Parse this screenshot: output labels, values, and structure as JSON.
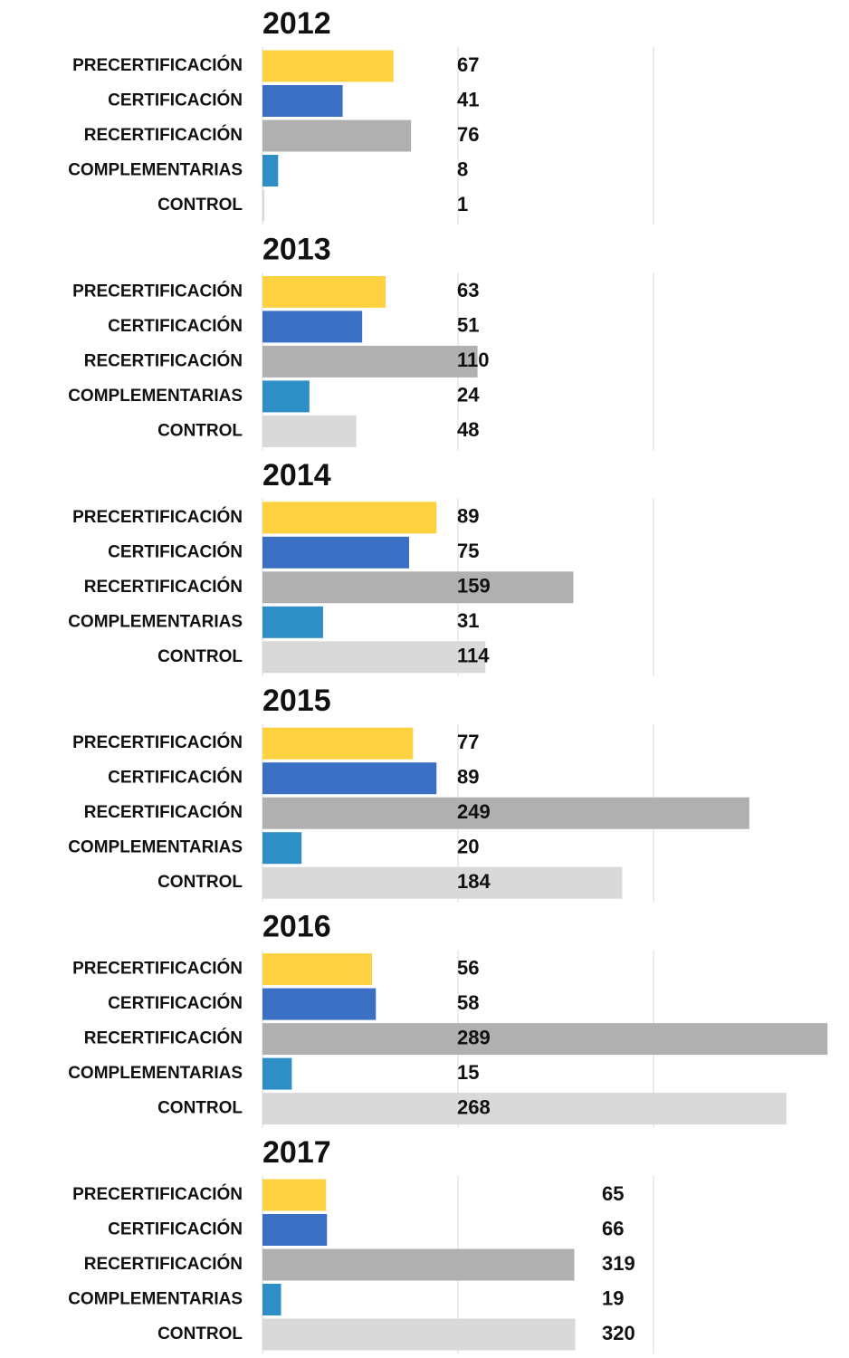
{
  "chart_data": [
    {
      "type": "bar",
      "title": "2012",
      "categories": [
        "PRECERTIFICACIÓN",
        "CERTIFICACIÓN",
        "RECERTIFICACIÓN",
        "COMPLEMENTARIAS",
        "CONTROL"
      ],
      "values": [
        67,
        41,
        76,
        8,
        1
      ],
      "colors": [
        "#fdd13f",
        "#3a6fc4",
        "#b0b0b0",
        "#2e8fc7",
        "#d9d9d9"
      ],
      "xlim": [
        0,
        300
      ],
      "xticks": [
        0,
        100,
        200
      ],
      "grid": true
    },
    {
      "type": "bar",
      "title": "2013",
      "categories": [
        "PRECERTIFICACIÓN",
        "CERTIFICACIÓN",
        "RECERTIFICACIÓN",
        "COMPLEMENTARIAS",
        "CONTROL"
      ],
      "values": [
        63,
        51,
        110,
        24,
        48
      ],
      "colors": [
        "#fdd13f",
        "#3a6fc4",
        "#b0b0b0",
        "#2e8fc7",
        "#d9d9d9"
      ],
      "xlim": [
        0,
        300
      ],
      "xticks": [
        0,
        100,
        200
      ],
      "grid": true
    },
    {
      "type": "bar",
      "title": "2014",
      "categories": [
        "PRECERTIFICACIÓN",
        "CERTIFICACIÓN",
        "RECERTIFICACIÓN",
        "COMPLEMENTARIAS",
        "CONTROL"
      ],
      "values": [
        89,
        75,
        159,
        31,
        114
      ],
      "colors": [
        "#fdd13f",
        "#3a6fc4",
        "#b0b0b0",
        "#2e8fc7",
        "#d9d9d9"
      ],
      "xlim": [
        0,
        300
      ],
      "xticks": [
        0,
        100,
        200
      ],
      "grid": true
    },
    {
      "type": "bar",
      "title": "2015",
      "categories": [
        "PRECERTIFICACIÓN",
        "CERTIFICACIÓN",
        "RECERTIFICACIÓN",
        "COMPLEMENTARIAS",
        "CONTROL"
      ],
      "values": [
        77,
        89,
        249,
        20,
        184
      ],
      "colors": [
        "#fdd13f",
        "#3a6fc4",
        "#b0b0b0",
        "#2e8fc7",
        "#d9d9d9"
      ],
      "xlim": [
        0,
        300
      ],
      "xticks": [
        0,
        100,
        200
      ],
      "grid": true
    },
    {
      "type": "bar",
      "title": "2016",
      "categories": [
        "PRECERTIFICACIÓN",
        "CERTIFICACIÓN",
        "RECERTIFICACIÓN",
        "COMPLEMENTARIAS",
        "CONTROL"
      ],
      "values": [
        56,
        58,
        289,
        15,
        268
      ],
      "colors": [
        "#fdd13f",
        "#3a6fc4",
        "#b0b0b0",
        "#2e8fc7",
        "#d9d9d9"
      ],
      "xlim": [
        0,
        300
      ],
      "xticks": [
        0,
        100,
        200
      ],
      "grid": true
    },
    {
      "type": "bar",
      "title": "2017",
      "categories": [
        "PRECERTIFICACIÓN",
        "CERTIFICACIÓN",
        "RECERTIFICACIÓN",
        "COMPLEMENTARIAS",
        "CONTROL"
      ],
      "values": [
        65,
        66,
        319,
        19,
        320
      ],
      "colors": [
        "#fdd13f",
        "#3a6fc4",
        "#b0b0b0",
        "#2e8fc7",
        "#d9d9d9"
      ],
      "xlim": [
        0,
        600
      ],
      "xticks": [
        0,
        200,
        400
      ],
      "grid": true
    }
  ]
}
